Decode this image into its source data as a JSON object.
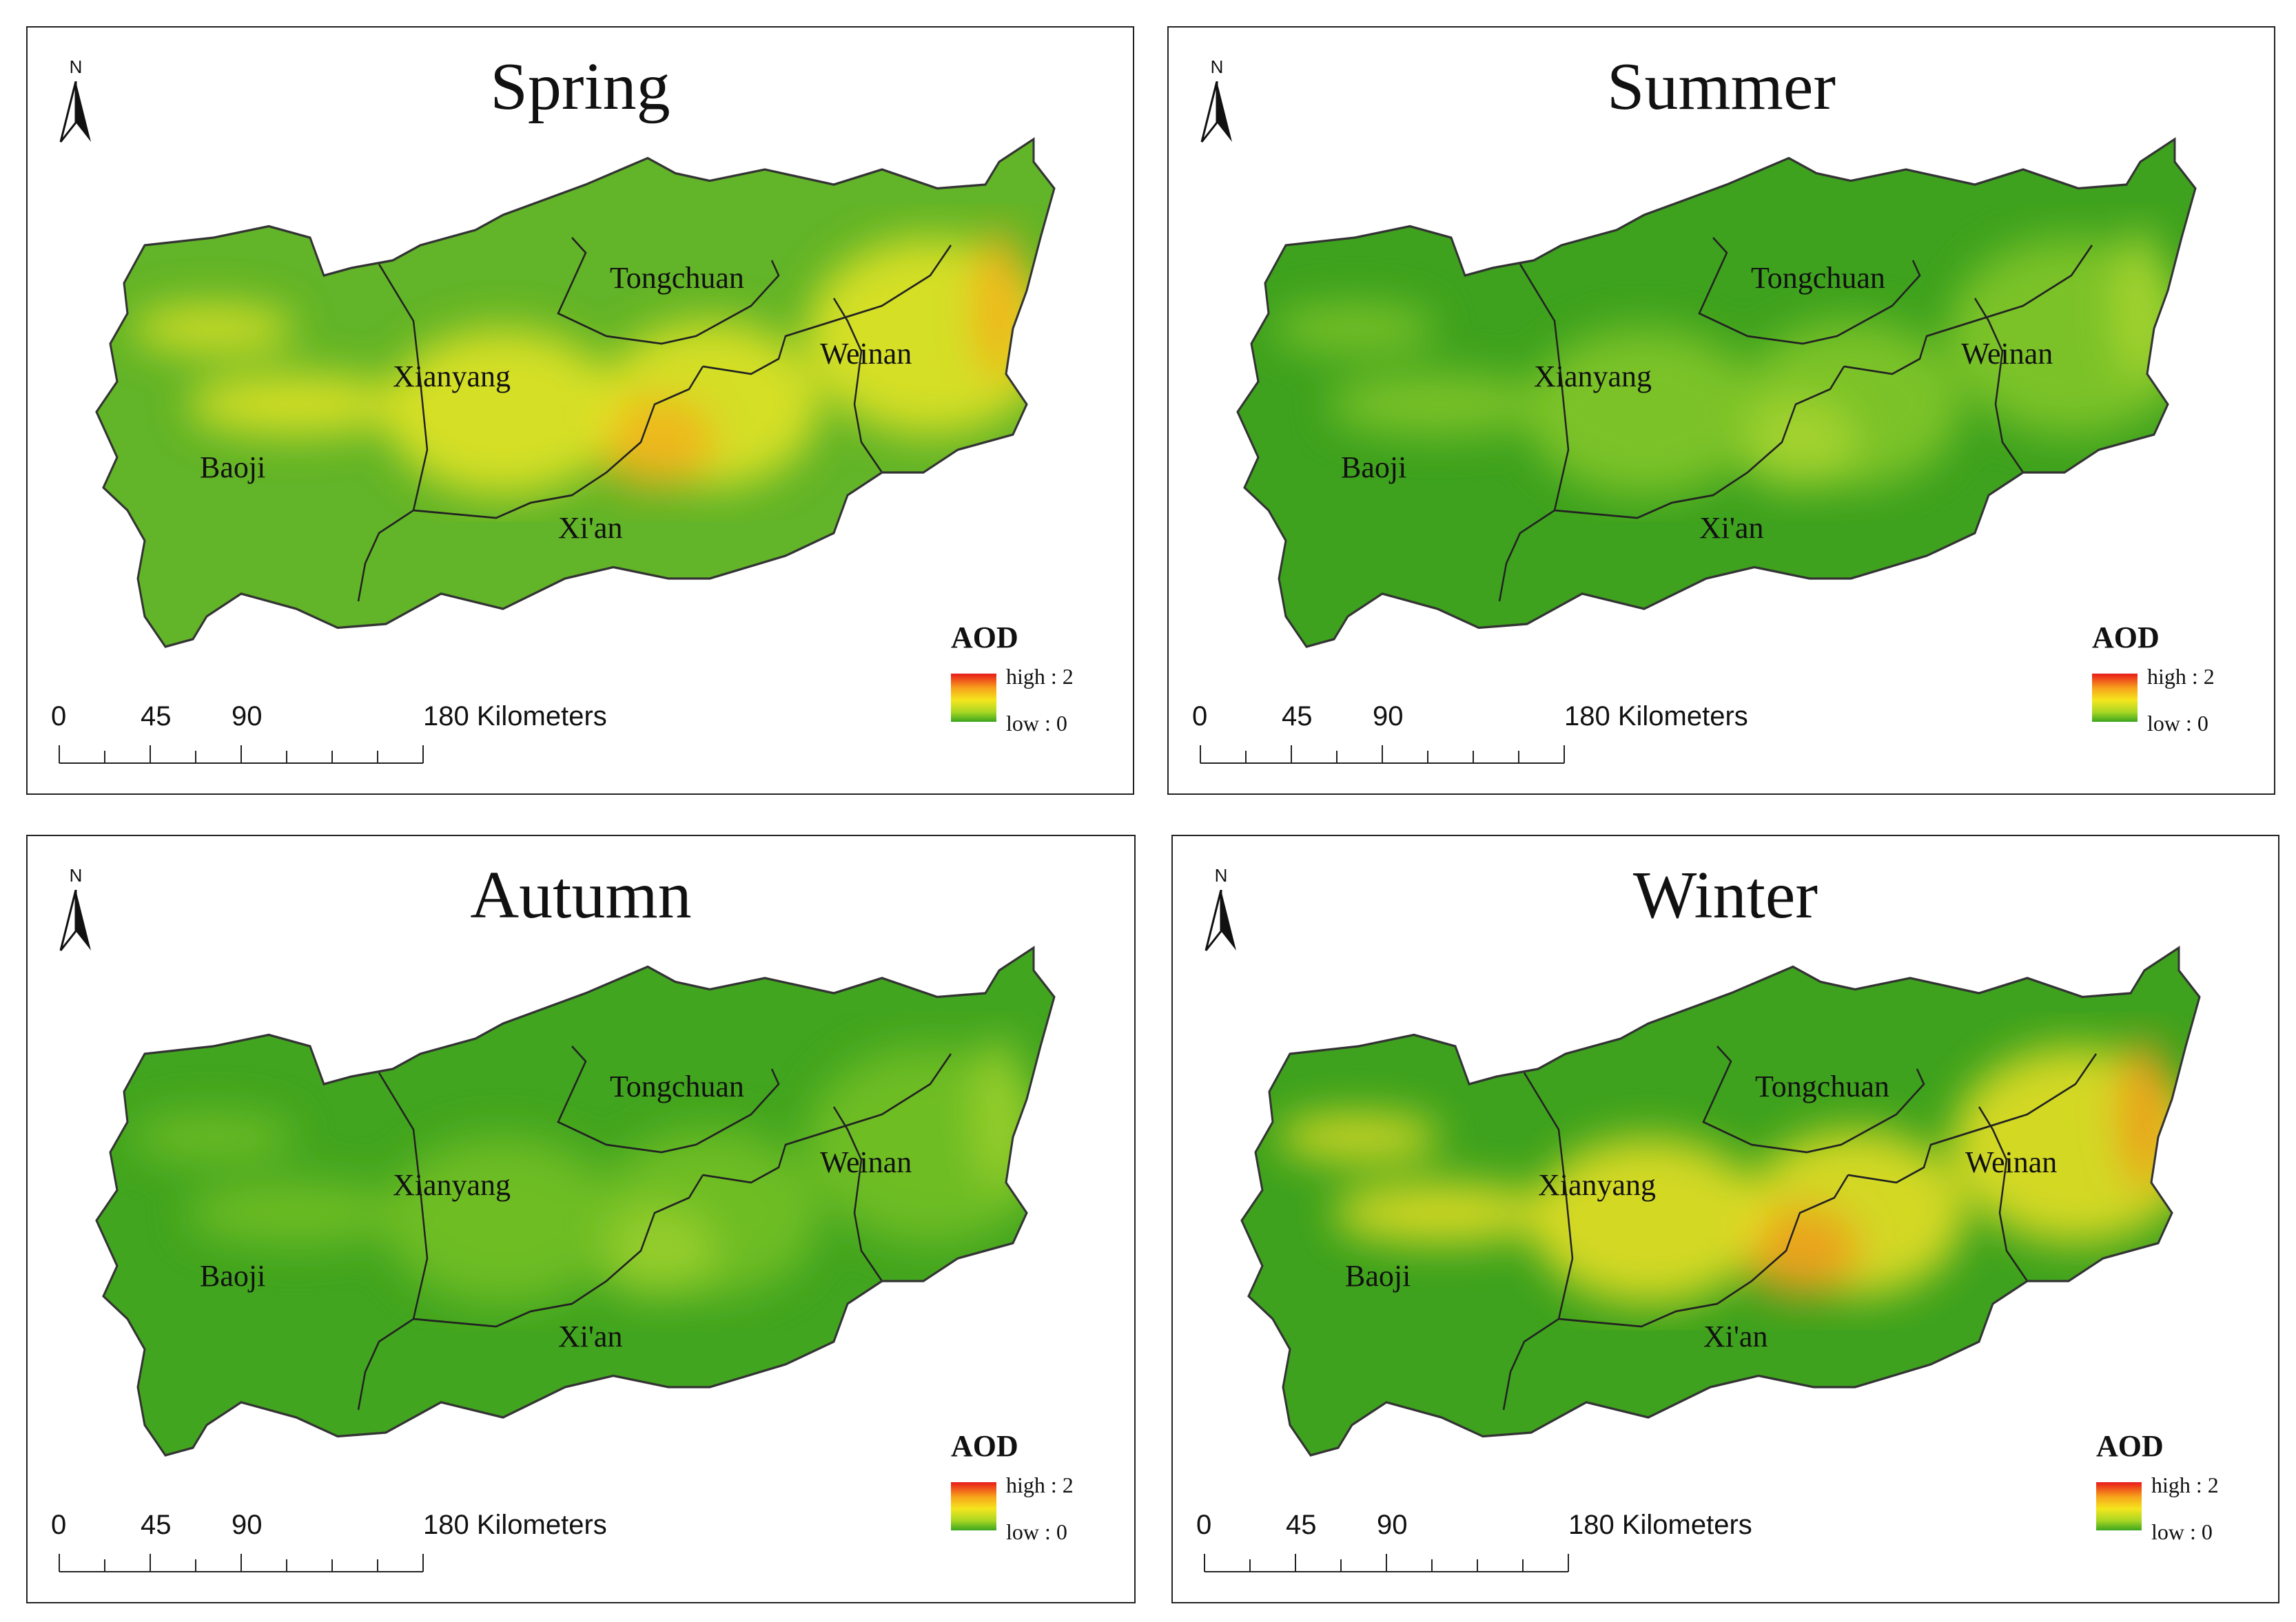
{
  "panels": [
    {
      "season": "Spring",
      "cities": {
        "tongchuan": "Tongchuan",
        "weinan": "Weinan",
        "xianyang": "Xianyang",
        "baoji": "Baoji",
        "xian": "Xi'an"
      },
      "legend": {
        "title": "AOD",
        "high": "high : 2",
        "low": "low  : 0"
      },
      "scale": {
        "ticks": [
          "0",
          "45",
          "90",
          "180 Kilometers"
        ]
      },
      "north_label": "N",
      "colors": {
        "base": "#62b428",
        "hot": "#e9e623",
        "hottest": "#f3b21b"
      }
    },
    {
      "season": "Summer",
      "cities": {
        "tongchuan": "Tongchuan",
        "weinan": "Weinan",
        "xianyang": "Xianyang",
        "baoji": "Baoji",
        "xian": "Xi'an"
      },
      "legend": {
        "title": "AOD",
        "high": "high : 2",
        "low": "low  : 0"
      },
      "scale": {
        "ticks": [
          "0",
          "45",
          "90",
          "180 Kilometers"
        ]
      },
      "north_label": "N",
      "colors": {
        "base": "#3ea21e",
        "hot": "#86c82a",
        "hottest": "#a9d631"
      }
    },
    {
      "season": "Autumn",
      "cities": {
        "tongchuan": "Tongchuan",
        "weinan": "Weinan",
        "xianyang": "Xianyang",
        "baoji": "Baoji",
        "xian": "Xi'an"
      },
      "legend": {
        "title": "AOD",
        "high": "high : 2",
        "low": "low  : 0"
      },
      "scale": {
        "ticks": [
          "0",
          "45",
          "90",
          "180 Kilometers"
        ]
      },
      "north_label": "N",
      "colors": {
        "base": "#42a51f",
        "hot": "#76c127",
        "hottest": "#9bd02d"
      }
    },
    {
      "season": "Winter",
      "cities": {
        "tongchuan": "Tongchuan",
        "weinan": "Weinan",
        "xianyang": "Xianyang",
        "baoji": "Baoji",
        "xian": "Xi'an"
      },
      "legend": {
        "title": "AOD",
        "high": "high : 2",
        "low": "low  : 0"
      },
      "scale": {
        "ticks": [
          "0",
          "45",
          "90",
          "180 Kilometers"
        ]
      },
      "north_label": "N",
      "colors": {
        "base": "#3ea21e",
        "hot": "#ede224",
        "hottest": "#ef9a1c"
      }
    }
  ]
}
